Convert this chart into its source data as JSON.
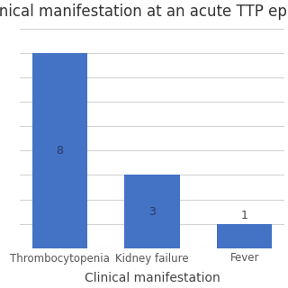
{
  "title": "Clinical manifestation at an acute TTP epis",
  "categories": [
    "Thrombocytopenia",
    "Kidney failure",
    "Fever"
  ],
  "values": [
    8,
    3,
    1
  ],
  "bar_color": "#4472C4",
  "xlabel": "Clinical manifestation",
  "ylabel": "",
  "ylim": [
    0,
    9
  ],
  "yticks": [
    0,
    1,
    2,
    3,
    4,
    5,
    6,
    7,
    8,
    9
  ],
  "bar_width": 0.6,
  "label_fontsize": 8.5,
  "title_fontsize": 12,
  "xlabel_fontsize": 10,
  "value_fontsize": 9,
  "background_color": "#ffffff",
  "grid_color": "#d3d3d3"
}
